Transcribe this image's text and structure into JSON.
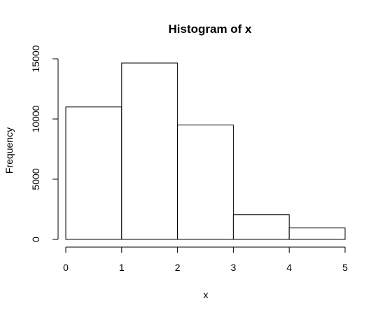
{
  "chart_data": {
    "type": "bar",
    "title": "Histogram of x",
    "xlabel": "x",
    "ylabel": "Frequency",
    "bins": [
      {
        "x0": 0,
        "x1": 1,
        "count": 11000
      },
      {
        "x0": 1,
        "x1": 2,
        "count": 14650
      },
      {
        "x0": 2,
        "x1": 3,
        "count": 9500
      },
      {
        "x0": 3,
        "x1": 4,
        "count": 2050
      },
      {
        "x0": 4,
        "x1": 5,
        "count": 950
      }
    ],
    "xlim": [
      0,
      5
    ],
    "ylim": [
      0,
      15000
    ],
    "x_ticks": [
      "0",
      "1",
      "2",
      "3",
      "4",
      "5"
    ],
    "y_ticks": [
      "0",
      "5000",
      "10000",
      "15000"
    ],
    "grid": false,
    "colors": {
      "bar_fill": "#ffffff",
      "bar_stroke": "#000000"
    }
  }
}
